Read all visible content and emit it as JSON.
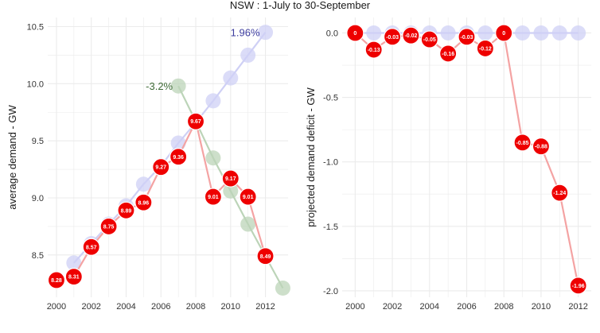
{
  "title": "NSW : 1-July to 30-September",
  "colors": {
    "panel_bg": "#ffffff",
    "grid": "#ebebeb",
    "axis_text": "#333333",
    "trend_up": "#cfd0f5",
    "trend_up_label": "#3d3d9e",
    "trend_down": "#bcd4b8",
    "trend_down_label": "#3f6b37",
    "actual_line": "#f4a3a3",
    "actual_point": "#ee0000",
    "point_label": "#ffffff"
  },
  "chart_data": [
    {
      "type": "line",
      "xlabel": "",
      "ylabel": "average demand - GW",
      "xlim": [
        1999.5,
        2013.3
      ],
      "ylim": [
        8.13,
        10.58
      ],
      "x_ticks": [
        "2000",
        "2002",
        "2004",
        "2006",
        "2008",
        "2010",
        "2012"
      ],
      "y_ticks": [
        "8.5",
        "9.0",
        "9.5",
        "10.0",
        "10.5"
      ],
      "grid": true,
      "series": [
        {
          "role": "trend-up",
          "label": "1.96%",
          "x": [
            2001,
            2002,
            2003,
            2004,
            2005,
            2006,
            2007,
            2008,
            2009,
            2010,
            2011,
            2012
          ],
          "y": [
            8.43,
            8.6,
            8.77,
            8.93,
            9.12,
            9.28,
            9.48,
            9.66,
            9.85,
            10.05,
            10.25,
            10.45
          ]
        },
        {
          "role": "trend-down",
          "label": "-3.2%",
          "x": [
            2007,
            2008,
            2009,
            2010,
            2011,
            2012,
            2013
          ],
          "y": [
            9.98,
            9.67,
            9.35,
            9.06,
            8.77,
            8.49,
            8.21
          ]
        },
        {
          "role": "actual",
          "x": [
            2000,
            2001,
            2002,
            2003,
            2004,
            2005,
            2006,
            2007,
            2008,
            2009,
            2010,
            2011,
            2012
          ],
          "y": [
            8.28,
            8.31,
            8.57,
            8.75,
            8.89,
            8.96,
            9.27,
            9.36,
            9.67,
            9.01,
            9.17,
            9.01,
            8.49
          ],
          "labels": [
            "8.28",
            "8.31",
            "8.57",
            "8.75",
            "8.89",
            "8.96",
            "9.27",
            "9.36",
            "9.67",
            "9.01",
            "9.17",
            "9.01",
            "8.49"
          ]
        }
      ]
    },
    {
      "type": "line",
      "xlabel": "",
      "ylabel": "projected demand deficit - GW",
      "xlim": [
        1999.3,
        2012.7
      ],
      "ylim": [
        -2.05,
        0.12
      ],
      "x_ticks": [
        "2000",
        "2002",
        "2004",
        "2006",
        "2008",
        "2010",
        "2012"
      ],
      "y_ticks": [
        "-2.0",
        "-1.5",
        "-1.0",
        "-0.5",
        "0.0"
      ],
      "grid": true,
      "series": [
        {
          "role": "baseline",
          "x": [
            2000,
            2001,
            2002,
            2003,
            2004,
            2005,
            2006,
            2007,
            2008,
            2009,
            2010,
            2011,
            2012
          ],
          "y": [
            0,
            0,
            0,
            0,
            0,
            0,
            0,
            0,
            0,
            0,
            0,
            0,
            0
          ]
        },
        {
          "role": "actual",
          "x": [
            2000,
            2001,
            2002,
            2003,
            2004,
            2005,
            2006,
            2007,
            2008,
            2009,
            2010,
            2011,
            2012
          ],
          "y": [
            0,
            -0.13,
            -0.03,
            -0.02,
            -0.05,
            -0.16,
            -0.03,
            -0.12,
            0,
            -0.85,
            -0.88,
            -1.24,
            -1.96
          ],
          "labels": [
            "0",
            "-0.13",
            "-0.03",
            "-0.02",
            "-0.05",
            "-0.16",
            "-0.03",
            "-0.12",
            "0",
            "-0.85",
            "-0.88",
            "-1.24",
            "-1.96"
          ]
        }
      ]
    }
  ]
}
